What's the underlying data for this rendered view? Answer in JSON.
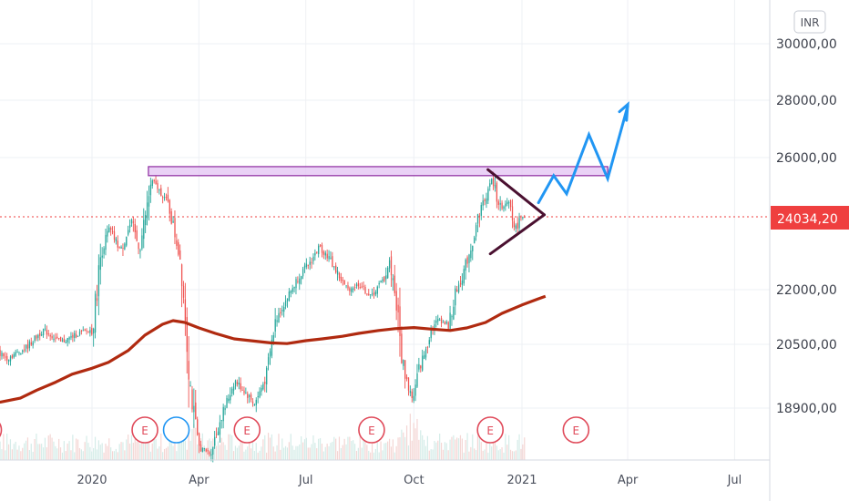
{
  "currency": "INR",
  "last_price_label": "24034,20",
  "colors": {
    "up": "#26a69a",
    "down": "#ef5350",
    "ma": "#b02a10",
    "resistance_fill": "#e3c3f3",
    "resistance_stroke": "#8d2aa0",
    "triangle": "#4a1030",
    "projection": "#2196f3",
    "last_price": "#ef3f3f",
    "earnings": "#e04a5a"
  },
  "chart_data": {
    "type": "candlestick",
    "title": "",
    "x_axis": {
      "tick_labels": [
        "2020",
        "Apr",
        "Jul",
        "Oct",
        "2021",
        "Apr",
        "Jul"
      ]
    },
    "y_axis": {
      "tick_labels": [
        "30000,00",
        "28000,00",
        "26000,00",
        "24034,20",
        "22000,00",
        "20500,00",
        "18900,00"
      ],
      "range": [
        17500,
        31200
      ]
    },
    "last_price": 24034.2,
    "moving_average": [
      [
        "2019-10-01",
        19000
      ],
      [
        "2019-10-15",
        19050
      ],
      [
        "2019-11-01",
        19150
      ],
      [
        "2019-11-15",
        19350
      ],
      [
        "2019-12-01",
        19550
      ],
      [
        "2019-12-15",
        19750
      ],
      [
        "2020-01-01",
        19900
      ],
      [
        "2020-01-15",
        20050
      ],
      [
        "2020-02-01",
        20350
      ],
      [
        "2020-02-15",
        20750
      ],
      [
        "2020-03-01",
        21050
      ],
      [
        "2020-03-10",
        21150
      ],
      [
        "2020-03-20",
        21100
      ],
      [
        "2020-04-01",
        20950
      ],
      [
        "2020-04-15",
        20800
      ],
      [
        "2020-05-01",
        20650
      ],
      [
        "2020-05-15",
        20600
      ],
      [
        "2020-06-01",
        20540
      ],
      [
        "2020-06-15",
        20520
      ],
      [
        "2020-07-01",
        20600
      ],
      [
        "2020-07-15",
        20650
      ],
      [
        "2020-08-01",
        20720
      ],
      [
        "2020-08-15",
        20800
      ],
      [
        "2020-09-01",
        20880
      ],
      [
        "2020-09-15",
        20930
      ],
      [
        "2020-10-01",
        20960
      ],
      [
        "2020-10-15",
        20920
      ],
      [
        "2020-11-01",
        20880
      ],
      [
        "2020-11-15",
        20950
      ],
      [
        "2020-12-01",
        21100
      ],
      [
        "2020-12-15",
        21350
      ],
      [
        "2021-01-01",
        21580
      ],
      [
        "2021-01-15",
        21750
      ],
      [
        "2021-01-21",
        21820
      ]
    ],
    "price_path": [
      [
        "2019-10-01",
        20550
      ],
      [
        "2019-10-20",
        20150
      ],
      [
        "2019-11-05",
        20400
      ],
      [
        "2019-11-20",
        20900
      ],
      [
        "2019-12-05",
        20550
      ],
      [
        "2019-12-20",
        20800
      ],
      [
        "2020-01-01",
        20900
      ],
      [
        "2020-01-08",
        23000
      ],
      [
        "2020-01-15",
        23700
      ],
      [
        "2020-01-25",
        23100
      ],
      [
        "2020-02-03",
        23900
      ],
      [
        "2020-02-10",
        23100
      ],
      [
        "2020-02-17",
        24500
      ],
      [
        "2020-02-20",
        25250
      ],
      [
        "2020-02-28",
        24850
      ],
      [
        "2020-03-05",
        24500
      ],
      [
        "2020-03-10",
        23700
      ],
      [
        "2020-03-16",
        22800
      ],
      [
        "2020-03-20",
        21300
      ],
      [
        "2020-03-24",
        19500
      ],
      [
        "2020-03-31",
        17800
      ],
      [
        "2020-04-10",
        17600
      ],
      [
        "2020-04-20",
        18700
      ],
      [
        "2020-05-01",
        19600
      ],
      [
        "2020-05-10",
        19300
      ],
      [
        "2020-05-18",
        19000
      ],
      [
        "2020-05-28",
        19700
      ],
      [
        "2020-06-05",
        21200
      ],
      [
        "2020-06-15",
        21800
      ],
      [
        "2020-06-25",
        22400
      ],
      [
        "2020-07-05",
        22800
      ],
      [
        "2020-07-12",
        23200
      ],
      [
        "2020-07-20",
        22900
      ],
      [
        "2020-07-30",
        22300
      ],
      [
        "2020-08-05",
        22000
      ],
      [
        "2020-08-15",
        22150
      ],
      [
        "2020-08-25",
        21800
      ],
      [
        "2020-09-05",
        22300
      ],
      [
        "2020-09-10",
        22800
      ],
      [
        "2020-09-15",
        21800
      ],
      [
        "2020-09-20",
        20200
      ],
      [
        "2020-09-25",
        19500
      ],
      [
        "2020-09-30",
        19100
      ],
      [
        "2020-10-05",
        19900
      ],
      [
        "2020-10-10",
        20300
      ],
      [
        "2020-10-15",
        20900
      ],
      [
        "2020-10-22",
        21200
      ],
      [
        "2020-10-30",
        21000
      ],
      [
        "2020-11-05",
        21900
      ],
      [
        "2020-11-12",
        22500
      ],
      [
        "2020-11-20",
        23400
      ],
      [
        "2020-11-26",
        24300
      ],
      [
        "2020-12-02",
        24800
      ],
      [
        "2020-12-06",
        25300
      ],
      [
        "2020-12-10",
        24700
      ],
      [
        "2020-12-15",
        24200
      ],
      [
        "2020-12-20",
        24600
      ],
      [
        "2020-12-26",
        23700
      ],
      [
        "2021-01-01",
        24100
      ],
      [
        "2021-01-04",
        24034
      ]
    ],
    "drawings": {
      "resistance_zone": {
        "from": "2020-02-18",
        "to": "2021-03-15",
        "low": 25400,
        "high": 25700
      },
      "triangle_upper": [
        [
          "2020-12-03",
          25600
        ],
        [
          "2021-01-20",
          24100
        ]
      ],
      "triangle_lower": [
        [
          "2020-12-05",
          23000
        ],
        [
          "2021-01-20",
          24100
        ]
      ],
      "projection": [
        [
          "2021-01-15",
          24500
        ],
        [
          "2021-01-28",
          25400
        ],
        [
          "2021-02-08",
          24800
        ],
        [
          "2021-02-27",
          26800
        ],
        [
          "2021-03-15",
          25300
        ],
        [
          "2021-04-01",
          27800
        ]
      ],
      "projection_arrow_head": [
        [
          "2021-03-25",
          27600
        ],
        [
          "2021-04-01",
          27850
        ],
        [
          "2021-03-31",
          27300
        ]
      ]
    },
    "earnings_markers": [
      {
        "label": "E",
        "date": "2019-10-05"
      },
      {
        "label": "E",
        "date": "2020-02-15"
      },
      {
        "label": "E",
        "date": "2020-05-12"
      },
      {
        "label": "E",
        "date": "2020-08-26"
      },
      {
        "label": "E",
        "date": "2020-12-05"
      },
      {
        "label": "E",
        "date": "2021-02-16"
      }
    ],
    "highlighted_marker": {
      "date": "2020-03-05"
    }
  }
}
